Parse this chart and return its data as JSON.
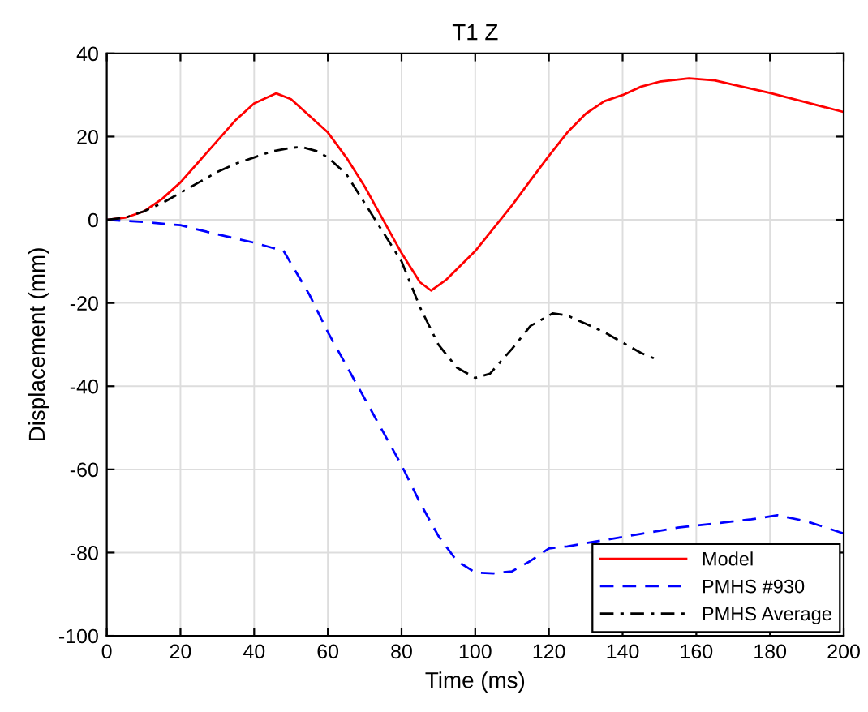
{
  "chart_data": {
    "type": "line",
    "title": "T1 Z",
    "xlabel": "Time (ms)",
    "ylabel": "Displacement (mm)",
    "xlim": [
      0,
      200
    ],
    "ylim": [
      -100,
      40
    ],
    "xticks": [
      0,
      20,
      40,
      60,
      80,
      100,
      120,
      140,
      160,
      180,
      200
    ],
    "yticks": [
      -100,
      -80,
      -60,
      -40,
      -20,
      0,
      20,
      40
    ],
    "grid": true,
    "legend": "bottom right",
    "series": [
      {
        "name": "Model",
        "color": "#ff0000",
        "line_style": "solid",
        "x": [
          0,
          5,
          10,
          15,
          20,
          25,
          30,
          35,
          40,
          46,
          50,
          55,
          60,
          65,
          70,
          75,
          80,
          85,
          88,
          92,
          96,
          100,
          105,
          110,
          115,
          120,
          125,
          130,
          135,
          140,
          145,
          150,
          158,
          165,
          170,
          180,
          190,
          200
        ],
        "values": [
          0,
          0.5,
          2,
          5,
          9,
          14,
          19,
          24,
          28,
          30.4,
          29,
          25,
          21,
          15,
          8,
          0,
          -8,
          -15,
          -17,
          -14.5,
          -11,
          -7.5,
          -2,
          3.5,
          9.5,
          15.4,
          21,
          25.5,
          28.5,
          30,
          32,
          33.2,
          34,
          33.5,
          32.5,
          30.5,
          28.2,
          25.9
        ]
      },
      {
        "name": "PMHS #930",
        "color": "#0000ff",
        "line_style": "dashed",
        "x": [
          0,
          10,
          20,
          30,
          40,
          48,
          55,
          60,
          65,
          70,
          75,
          80,
          85,
          90,
          95,
          100,
          105,
          110,
          115,
          120,
          125,
          135,
          145,
          155,
          165,
          175,
          182,
          190,
          200
        ],
        "values": [
          0,
          -0.5,
          -1.3,
          -3.5,
          -5.5,
          -7.5,
          -18,
          -27,
          -35,
          -43,
          -51,
          -59,
          -68,
          -76,
          -82,
          -84.8,
          -85,
          -84.5,
          -82,
          -79,
          -78.5,
          -77,
          -75.5,
          -74,
          -73,
          -72,
          -71,
          -72.5,
          -75.4
        ]
      },
      {
        "name": "PMHS Average",
        "color": "#000000",
        "line_style": "dashdot",
        "x": [
          0,
          5,
          10,
          15,
          20,
          25,
          30,
          35,
          40,
          45,
          50,
          53,
          57,
          60,
          65,
          70,
          75,
          80,
          85,
          90,
          95,
          100,
          104,
          110,
          115,
          121,
          125,
          130,
          135,
          140,
          145,
          149
        ],
        "values": [
          0,
          0.5,
          2,
          4,
          6.5,
          9,
          11.5,
          13.5,
          15,
          16.5,
          17.3,
          17.5,
          16.5,
          15,
          11,
          4,
          -3,
          -10,
          -21,
          -30,
          -35.5,
          -38,
          -37,
          -31,
          -25.5,
          -22.5,
          -23,
          -25,
          -27,
          -29.5,
          -32,
          -33.5
        ]
      }
    ]
  }
}
